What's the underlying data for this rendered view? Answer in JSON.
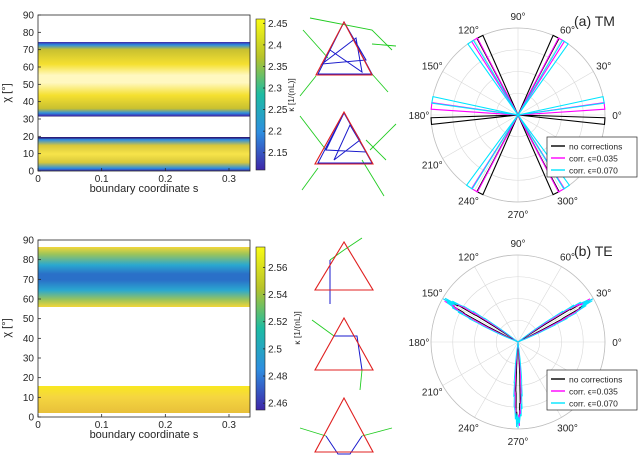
{
  "panel_labels": [
    "(a) TM",
    "(b) TE"
  ],
  "colorbar_label": "κ [1/(nL)]",
  "scatter_xlabel": "boundary coordinate s",
  "scatter_ylabel": "χ [°]",
  "polar_angle_labels": [
    "90°",
    "60°",
    "30°",
    "0°",
    "300°",
    "270°",
    "240°",
    "210°",
    "180°",
    "150°",
    "120°"
  ],
  "legend": [
    "no corrections",
    "corr. ϵ=0.035",
    "corr. ϵ=0.070"
  ],
  "legend_colors": [
    "#000000",
    "#ff00ff",
    "#00e5ff"
  ],
  "chart_data": [
    {
      "type": "scatter",
      "panel": "a-left",
      "xlabel": "boundary coordinate s",
      "ylabel": "χ [°]",
      "xlim": [
        0,
        0.333
      ],
      "ylim": [
        0,
        90
      ],
      "xticks": [
        "0",
        "0.1",
        "0.2",
        "0.3"
      ],
      "yticks": [
        "0",
        "10",
        "20",
        "30",
        "40",
        "50",
        "60",
        "70",
        "80",
        "90"
      ],
      "bands": [
        {
          "chi_range": [
            42,
            78
          ],
          "note": "high kappa center, dark edges"
        },
        {
          "chi_range": [
            2,
            18
          ],
          "note": "dark edges"
        }
      ],
      "colorbar": {
        "label": "κ [1/(nL)]",
        "range": [
          2.11,
          2.46
        ],
        "ticks": [
          "2.45",
          "2.4",
          "2.35",
          "2.3",
          "2.25",
          "2.2",
          "2.15"
        ]
      }
    },
    {
      "type": "scatter",
      "panel": "b-left",
      "xlabel": "boundary coordinate s",
      "ylabel": "χ [°]",
      "xlim": [
        0,
        0.333
      ],
      "ylim": [
        0,
        90
      ],
      "xticks": [
        "0",
        "0.1",
        "0.2",
        "0.3"
      ],
      "yticks": [
        "0",
        "10",
        "20",
        "30",
        "40",
        "50",
        "60",
        "70",
        "80",
        "90"
      ],
      "bands": [
        {
          "chi_range": [
            44,
            76
          ],
          "note": "low kappa center near 60"
        },
        {
          "chi_range": [
            2,
            15
          ],
          "note": "high kappa"
        }
      ],
      "colorbar": {
        "label": "κ [1/(nL)]",
        "range": [
          2.455,
          2.575
        ],
        "ticks": [
          "2.56",
          "2.54",
          "2.52",
          "2.5",
          "2.48",
          "2.46"
        ]
      }
    },
    {
      "type": "line",
      "panel": "a-polar",
      "subtype": "polar",
      "label": "(a) TM",
      "r_rings": 4,
      "directions_deg": [
        60,
        120,
        180,
        0,
        240,
        300
      ],
      "series": [
        {
          "name": "no corrections",
          "color": "#000000",
          "lobes_deg": [
            64,
            116,
            184,
            356,
            244,
            296
          ]
        },
        {
          "name": "corr. ϵ=0.035",
          "color": "#ff00ff",
          "lobes_deg": [
            60,
            120,
            174,
            6,
            240,
            300
          ]
        },
        {
          "name": "corr. ϵ=0.070",
          "color": "#00e5ff",
          "lobes_deg": [
            57,
            123,
            170,
            10,
            236,
            304
          ]
        }
      ]
    },
    {
      "type": "line",
      "panel": "b-polar",
      "subtype": "polar",
      "label": "(b) TE",
      "r_rings": 4,
      "directions_deg": [
        30,
        150,
        270
      ],
      "series": [
        {
          "name": "no corrections"
        },
        {
          "name": "corr. ϵ=0.035"
        },
        {
          "name": "corr. ϵ=0.070"
        }
      ]
    }
  ]
}
